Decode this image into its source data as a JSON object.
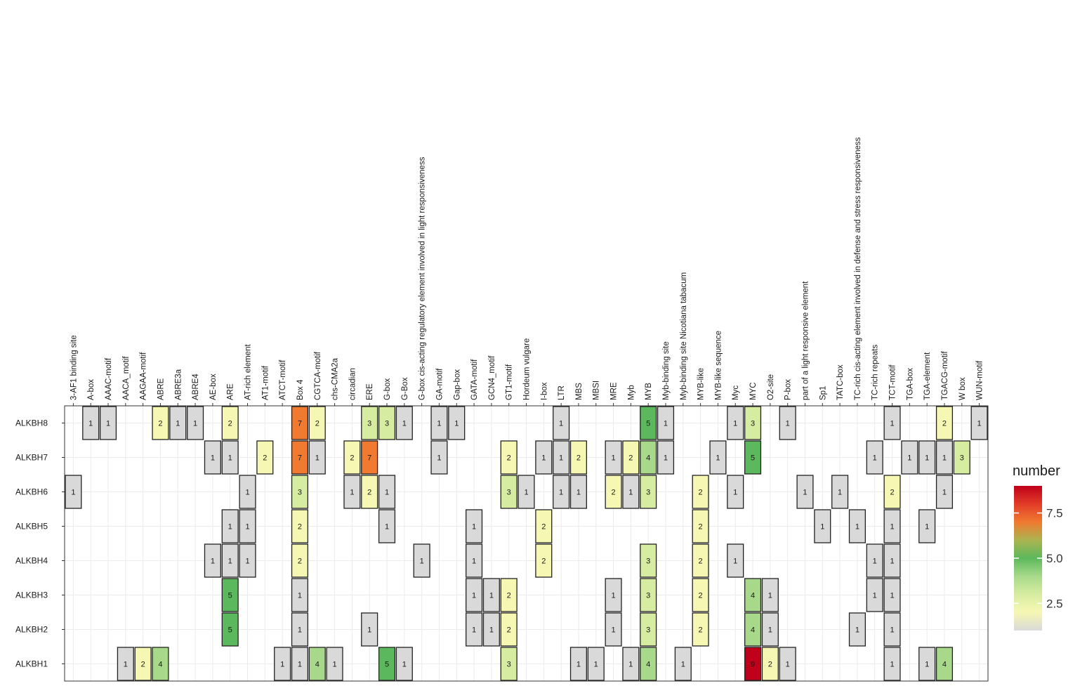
{
  "chart_data": {
    "type": "heatmap",
    "title": "",
    "xlabel": "",
    "ylabel": "",
    "x_categories": [
      "3-AF1 binding site",
      "A-box",
      "AAAC-motif",
      "AACA_motif",
      "AAGAA-motif",
      "ABRE",
      "ABRE3a",
      "ABRE4",
      "AE-box",
      "ARE",
      "AT-rich element",
      "AT1-motif",
      "ATCT-motif",
      "Box 4",
      "CGTCA-motif",
      "chs-CMA2a",
      "circadian",
      "ERE",
      "G-box",
      "G-Box",
      "G-box cis-acting regulatory element involved in light responsiveness",
      "GA-motif",
      "Gap-box",
      "GATA-motif",
      "GCN4_motif",
      "GT1-motif",
      "Hordeum vulgare",
      "I-box",
      "LTR",
      "MBS",
      "MBSI",
      "MRE",
      "Myb",
      "MYB",
      "Myb-binding site",
      "Myb-binding site Nicotiana tabacum",
      "MYB-like",
      "MYB-like sequence",
      "Myc",
      "MYC",
      "O2-site",
      "P-box",
      "part of a light responsive element",
      "Sp1",
      "TATC-box",
      "TC-rich cis-acting element involved in defense and stress responsiveness",
      "TC-rich repeats",
      "TCT-motif",
      "TGA-box",
      "TGA-element",
      "TGACG-motif",
      "W box",
      "WUN-motif"
    ],
    "y_categories": [
      "ALKBH8",
      "ALKBH7",
      "ALKBH6",
      "ALKBH5",
      "ALKBH4",
      "ALKBH3",
      "ALKBH2",
      "ALKBH1"
    ],
    "cells": [
      [
        "ALKBH8",
        1,
        1
      ],
      [
        "ALKBH8",
        2,
        1
      ],
      [
        "ALKBH8",
        5,
        2
      ],
      [
        "ALKBH8",
        6,
        1
      ],
      [
        "ALKBH8",
        7,
        1
      ],
      [
        "ALKBH8",
        9,
        2
      ],
      [
        "ALKBH8",
        13,
        7
      ],
      [
        "ALKBH8",
        14,
        2
      ],
      [
        "ALKBH8",
        17,
        3
      ],
      [
        "ALKBH8",
        18,
        3
      ],
      [
        "ALKBH8",
        19,
        1
      ],
      [
        "ALKBH8",
        21,
        1
      ],
      [
        "ALKBH8",
        22,
        1
      ],
      [
        "ALKBH8",
        28,
        1
      ],
      [
        "ALKBH8",
        33,
        5
      ],
      [
        "ALKBH8",
        34,
        1
      ],
      [
        "ALKBH8",
        38,
        1
      ],
      [
        "ALKBH8",
        39,
        3
      ],
      [
        "ALKBH8",
        41,
        1
      ],
      [
        "ALKBH8",
        47,
        1
      ],
      [
        "ALKBH8",
        50,
        2
      ],
      [
        "ALKBH8",
        52,
        1
      ],
      [
        "ALKBH7",
        8,
        1
      ],
      [
        "ALKBH7",
        9,
        1
      ],
      [
        "ALKBH7",
        11,
        2
      ],
      [
        "ALKBH7",
        13,
        7
      ],
      [
        "ALKBH7",
        14,
        1
      ],
      [
        "ALKBH7",
        16,
        2
      ],
      [
        "ALKBH7",
        17,
        7
      ],
      [
        "ALKBH7",
        21,
        1
      ],
      [
        "ALKBH7",
        25,
        2
      ],
      [
        "ALKBH7",
        27,
        1
      ],
      [
        "ALKBH7",
        28,
        1
      ],
      [
        "ALKBH7",
        29,
        2
      ],
      [
        "ALKBH7",
        31,
        1
      ],
      [
        "ALKBH7",
        32,
        2
      ],
      [
        "ALKBH7",
        33,
        4
      ],
      [
        "ALKBH7",
        34,
        1
      ],
      [
        "ALKBH7",
        37,
        1
      ],
      [
        "ALKBH7",
        39,
        5
      ],
      [
        "ALKBH7",
        46,
        1
      ],
      [
        "ALKBH7",
        48,
        1
      ],
      [
        "ALKBH7",
        49,
        1
      ],
      [
        "ALKBH7",
        50,
        1
      ],
      [
        "ALKBH7",
        51,
        3
      ],
      [
        "ALKBH6",
        0,
        1
      ],
      [
        "ALKBH6",
        10,
        1
      ],
      [
        "ALKBH6",
        13,
        3
      ],
      [
        "ALKBH6",
        16,
        1
      ],
      [
        "ALKBH6",
        17,
        2
      ],
      [
        "ALKBH6",
        18,
        1
      ],
      [
        "ALKBH6",
        25,
        3
      ],
      [
        "ALKBH6",
        26,
        1
      ],
      [
        "ALKBH6",
        28,
        1
      ],
      [
        "ALKBH6",
        29,
        1
      ],
      [
        "ALKBH6",
        31,
        2
      ],
      [
        "ALKBH6",
        32,
        1
      ],
      [
        "ALKBH6",
        33,
        3
      ],
      [
        "ALKBH6",
        36,
        2
      ],
      [
        "ALKBH6",
        38,
        1
      ],
      [
        "ALKBH6",
        42,
        1
      ],
      [
        "ALKBH6",
        44,
        1
      ],
      [
        "ALKBH6",
        47,
        2
      ],
      [
        "ALKBH6",
        50,
        1
      ],
      [
        "ALKBH5",
        9,
        1
      ],
      [
        "ALKBH5",
        10,
        1
      ],
      [
        "ALKBH5",
        13,
        2
      ],
      [
        "ALKBH5",
        18,
        1
      ],
      [
        "ALKBH5",
        23,
        1
      ],
      [
        "ALKBH5",
        27,
        2
      ],
      [
        "ALKBH5",
        36,
        2
      ],
      [
        "ALKBH5",
        43,
        1
      ],
      [
        "ALKBH5",
        45,
        1
      ],
      [
        "ALKBH5",
        47,
        1
      ],
      [
        "ALKBH5",
        49,
        1
      ],
      [
        "ALKBH4",
        8,
        1
      ],
      [
        "ALKBH4",
        9,
        1
      ],
      [
        "ALKBH4",
        10,
        1
      ],
      [
        "ALKBH4",
        13,
        2
      ],
      [
        "ALKBH4",
        20,
        1
      ],
      [
        "ALKBH4",
        23,
        1
      ],
      [
        "ALKBH4",
        27,
        2
      ],
      [
        "ALKBH4",
        33,
        3
      ],
      [
        "ALKBH4",
        36,
        2
      ],
      [
        "ALKBH4",
        38,
        1
      ],
      [
        "ALKBH4",
        46,
        1
      ],
      [
        "ALKBH4",
        47,
        1
      ],
      [
        "ALKBH3",
        9,
        5
      ],
      [
        "ALKBH3",
        13,
        1
      ],
      [
        "ALKBH3",
        23,
        1
      ],
      [
        "ALKBH3",
        24,
        1
      ],
      [
        "ALKBH3",
        25,
        2
      ],
      [
        "ALKBH3",
        31,
        1
      ],
      [
        "ALKBH3",
        33,
        3
      ],
      [
        "ALKBH3",
        36,
        2
      ],
      [
        "ALKBH3",
        39,
        4
      ],
      [
        "ALKBH3",
        40,
        1
      ],
      [
        "ALKBH3",
        46,
        1
      ],
      [
        "ALKBH3",
        47,
        1
      ],
      [
        "ALKBH2",
        9,
        5
      ],
      [
        "ALKBH2",
        13,
        1
      ],
      [
        "ALKBH2",
        17,
        1
      ],
      [
        "ALKBH2",
        23,
        1
      ],
      [
        "ALKBH2",
        24,
        1
      ],
      [
        "ALKBH2",
        25,
        2
      ],
      [
        "ALKBH2",
        31,
        1
      ],
      [
        "ALKBH2",
        33,
        3
      ],
      [
        "ALKBH2",
        36,
        2
      ],
      [
        "ALKBH2",
        39,
        4
      ],
      [
        "ALKBH2",
        40,
        1
      ],
      [
        "ALKBH2",
        45,
        1
      ],
      [
        "ALKBH2",
        47,
        1
      ],
      [
        "ALKBH1",
        3,
        1
      ],
      [
        "ALKBH1",
        4,
        2
      ],
      [
        "ALKBH1",
        5,
        4
      ],
      [
        "ALKBH1",
        12,
        1
      ],
      [
        "ALKBH1",
        13,
        1
      ],
      [
        "ALKBH1",
        14,
        4
      ],
      [
        "ALKBH1",
        15,
        1
      ],
      [
        "ALKBH1",
        18,
        5
      ],
      [
        "ALKBH1",
        19,
        1
      ],
      [
        "ALKBH1",
        25,
        3
      ],
      [
        "ALKBH1",
        29,
        1
      ],
      [
        "ALKBH1",
        30,
        1
      ],
      [
        "ALKBH1",
        32,
        1
      ],
      [
        "ALKBH1",
        33,
        4
      ],
      [
        "ALKBH1",
        35,
        1
      ],
      [
        "ALKBH1",
        39,
        9
      ],
      [
        "ALKBH1",
        40,
        2
      ],
      [
        "ALKBH1",
        41,
        1
      ],
      [
        "ALKBH1",
        47,
        1
      ],
      [
        "ALKBH1",
        49,
        1
      ],
      [
        "ALKBH1",
        50,
        4
      ]
    ],
    "legend": {
      "title": "number",
      "position": "right",
      "ticks": [
        2.5,
        5.0,
        7.5
      ],
      "tick_labels": [
        "2.5",
        "5.0",
        "7.5"
      ],
      "range": [
        1,
        9
      ],
      "colors": [
        "#d9d9d9",
        "#f7f7b4",
        "#a8d98a",
        "#5cb85c",
        "#f39c3c",
        "#f07a30",
        "#c0001a"
      ]
    },
    "grid": true
  }
}
